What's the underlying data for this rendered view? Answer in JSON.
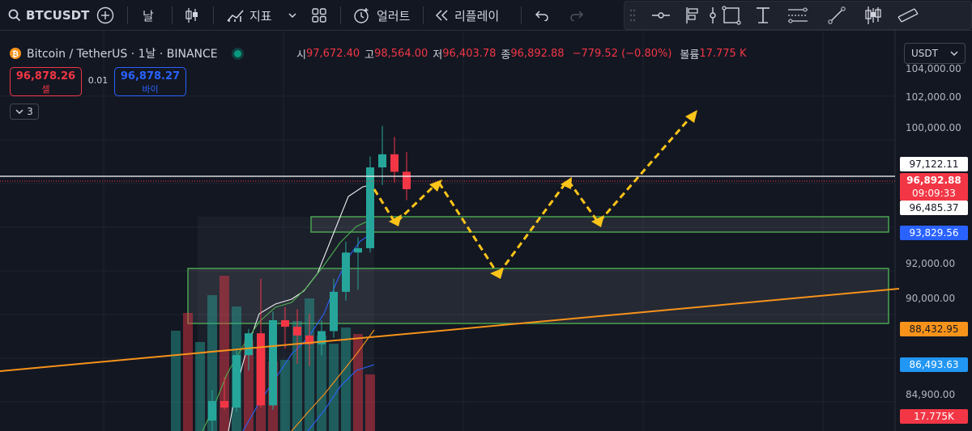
{
  "toolbar": {
    "symbol": "BTCUSDT",
    "interval": "날",
    "indicators": "지표",
    "alert": "얼러트",
    "replay": "리플레이"
  },
  "legend": {
    "title": "Bitcoin / TetherUS · 1날 · BINANCE",
    "open_label": "시",
    "open": "97,672.40",
    "high_label": "고",
    "high": "98,564.00",
    "low_label": "저",
    "low": "96,403.78",
    "close_label": "종",
    "close": "96,892.88",
    "change": "−779.52 (−0.80%)",
    "volume_label": "볼륨",
    "volume": "17.775 K"
  },
  "trade": {
    "sell_price": "96,878.26",
    "sell_label": "셀",
    "spread": "0.01",
    "buy_price": "96,878.27",
    "buy_label": "바이"
  },
  "collapse": {
    "count": "3"
  },
  "currency": "USDT",
  "price_axis": {
    "ticks": [
      "104,000.00",
      "102,000.00",
      "100,000.00",
      "92,000.00",
      "90,000.00",
      "84,900.00"
    ],
    "tags": {
      "line_price": "97,122.11",
      "last_price": "96,892.88",
      "countdown": "09:09:33",
      "ma1": "96,485.37",
      "ma2": "93,829.56",
      "trendline": "88,432.95",
      "ma3": "86,493.63",
      "volume": "17.775K"
    }
  },
  "colors": {
    "up": "#26a69a",
    "down": "#f23645",
    "accent": "#2962ff",
    "trend": "#f7931a",
    "arrow": "#fcc419",
    "zone": "#4caf50"
  },
  "chart_data": {
    "type": "candlestick",
    "icons": [
      "bitcoin-icon",
      "plus-icon",
      "candles-icon",
      "indicators-icon",
      "grid-icon",
      "alarm-icon",
      "replay-icon",
      "undo-icon",
      "redo-icon"
    ],
    "candles": [
      {
        "o": 86300,
        "h": 87700,
        "l": 85000,
        "c": 87200
      },
      {
        "o": 87200,
        "h": 88300,
        "l": 86800,
        "c": 86900
      },
      {
        "o": 86900,
        "h": 89600,
        "l": 86700,
        "c": 89300
      },
      {
        "o": 89300,
        "h": 90500,
        "l": 88600,
        "c": 90300
      },
      {
        "o": 90300,
        "h": 92800,
        "l": 86900,
        "c": 87000
      },
      {
        "o": 87000,
        "h": 91300,
        "l": 86800,
        "c": 90900
      },
      {
        "o": 90900,
        "h": 91500,
        "l": 89600,
        "c": 90600
      },
      {
        "o": 90600,
        "h": 91400,
        "l": 88900,
        "c": 90200
      },
      {
        "o": 90200,
        "h": 91200,
        "l": 88800,
        "c": 89800
      },
      {
        "o": 89800,
        "h": 90900,
        "l": 89300,
        "c": 90400
      },
      {
        "o": 90400,
        "h": 92800,
        "l": 90100,
        "c": 92200
      },
      {
        "o": 92200,
        "h": 94500,
        "l": 91800,
        "c": 94000
      },
      {
        "o": 94000,
        "h": 94700,
        "l": 92300,
        "c": 94200
      },
      {
        "o": 94200,
        "h": 98400,
        "l": 94000,
        "c": 97900
      },
      {
        "o": 97900,
        "h": 99800,
        "l": 97100,
        "c": 98500
      },
      {
        "o": 98500,
        "h": 99300,
        "l": 97200,
        "c": 97700
      },
      {
        "o": 97700,
        "h": 98600,
        "l": 96400,
        "c": 96900
      }
    ],
    "volumes": [
      620,
      730,
      550,
      840,
      960,
      770,
      560,
      520,
      430,
      440,
      680,
      820,
      590,
      540,
      640,
      600,
      350
    ]
  }
}
